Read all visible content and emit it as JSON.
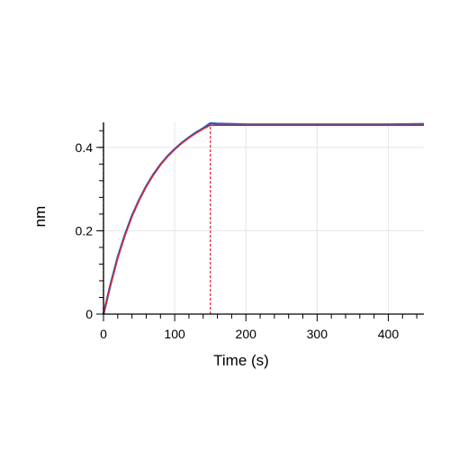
{
  "chart_data": {
    "type": "line",
    "title": "",
    "xlabel": "Time (s)",
    "ylabel": "nm",
    "xlim": [
      0,
      450
    ],
    "ylim": [
      0,
      0.46
    ],
    "x_ticks": [
      0,
      100,
      200,
      300,
      400
    ],
    "x_tick_labels": [
      "0",
      "100",
      "200",
      "300",
      "400"
    ],
    "y_ticks": [
      0,
      0.2,
      0.4
    ],
    "y_tick_labels": [
      "0",
      "0.2",
      "0.4"
    ],
    "grid": true,
    "legend": "none",
    "vertical_markers": [
      0,
      150
    ],
    "series": [
      {
        "role": "measured",
        "color": "#1f5fbf",
        "x": [
          0,
          10,
          20,
          30,
          40,
          50,
          60,
          70,
          80,
          90,
          100,
          110,
          120,
          130,
          140,
          150,
          160,
          200,
          250,
          300,
          350,
          400,
          450
        ],
        "y": [
          0,
          0.072,
          0.137,
          0.19,
          0.236,
          0.274,
          0.307,
          0.335,
          0.359,
          0.379,
          0.396,
          0.411,
          0.424,
          0.436,
          0.446,
          0.458,
          0.457,
          0.455,
          0.455,
          0.455,
          0.455,
          0.455,
          0.456
        ]
      },
      {
        "role": "fit",
        "color": "#e8212e",
        "x": [
          0,
          10,
          20,
          30,
          40,
          50,
          60,
          70,
          80,
          90,
          100,
          110,
          120,
          130,
          140,
          150,
          160,
          200,
          250,
          300,
          350,
          400,
          450
        ],
        "y": [
          0,
          0.07,
          0.134,
          0.188,
          0.234,
          0.273,
          0.306,
          0.334,
          0.358,
          0.378,
          0.395,
          0.41,
          0.423,
          0.434,
          0.444,
          0.453,
          0.453,
          0.453,
          0.453,
          0.453,
          0.453,
          0.453,
          0.453
        ]
      }
    ]
  },
  "colors": {
    "axis": "#000000",
    "grid": "#e6e6e6",
    "marker_line": "#e8212e"
  }
}
